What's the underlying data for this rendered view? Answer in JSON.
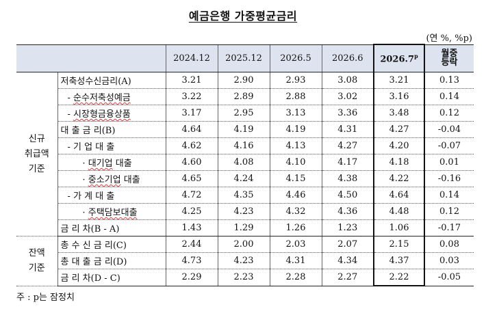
{
  "title": "예금은행 가중평균금리",
  "unit": "(연 %, %p)",
  "headers": {
    "cols": [
      "2024.12",
      "2025.12",
      "2026.5",
      "2026.6",
      "2026.7"
    ],
    "prelim_mark": "p",
    "mom_line1": "월중",
    "mom_line2": "등락"
  },
  "groups": [
    {
      "line1": "신규",
      "line2": "취급액",
      "line3": "기준"
    },
    {
      "line1": "잔액",
      "line2": "기준"
    }
  ],
  "rows": [
    {
      "label": "저축성수신금리(A)",
      "values": [
        "3.21",
        "2.90",
        "2.93",
        "3.08",
        "3.21",
        "0.13"
      ]
    },
    {
      "label": "- 순수저축성예금",
      "values": [
        "3.22",
        "2.89",
        "2.88",
        "3.02",
        "3.16",
        "0.14"
      ]
    },
    {
      "label": "- 시장형금융상품",
      "values": [
        "3.17",
        "2.95",
        "3.13",
        "3.36",
        "3.48",
        "0.12"
      ]
    },
    {
      "label": "대 출 금 리(B)",
      "values": [
        "4.64",
        "4.19",
        "4.19",
        "4.31",
        "4.27",
        "-0.04"
      ]
    },
    {
      "label": "- 기 업 대 출",
      "values": [
        "4.62",
        "4.16",
        "4.13",
        "4.27",
        "4.20",
        "-0.07"
      ]
    },
    {
      "label": "· 대기업 대출",
      "values": [
        "4.60",
        "4.08",
        "4.10",
        "4.17",
        "4.18",
        "0.01"
      ]
    },
    {
      "label": "· 중소기업 대출",
      "values": [
        "4.65",
        "4.24",
        "4.15",
        "4.38",
        "4.22",
        "-0.16"
      ]
    },
    {
      "label": "- 가 계 대 출",
      "values": [
        "4.72",
        "4.35",
        "4.46",
        "4.50",
        "4.64",
        "0.14"
      ]
    },
    {
      "label": "· 주택담보대출",
      "values": [
        "4.25",
        "4.23",
        "4.32",
        "4.36",
        "4.48",
        "0.12"
      ]
    },
    {
      "label": "금 리 차(B - A)",
      "values": [
        "1.43",
        "1.29",
        "1.26",
        "1.23",
        "1.06",
        "-0.17"
      ]
    },
    {
      "label": "총 수 신 금 리(C)",
      "values": [
        "2.44",
        "2.00",
        "2.03",
        "2.07",
        "2.15",
        "0.08"
      ]
    },
    {
      "label": "총 대 출 금 리(D)",
      "values": [
        "4.73",
        "4.23",
        "4.31",
        "4.34",
        "4.37",
        "0.03"
      ]
    },
    {
      "label": "금 리 차(D - C)",
      "values": [
        "2.29",
        "2.23",
        "2.28",
        "2.27",
        "2.22",
        "-0.05"
      ]
    }
  ],
  "note": "주 : p는 잠정치"
}
